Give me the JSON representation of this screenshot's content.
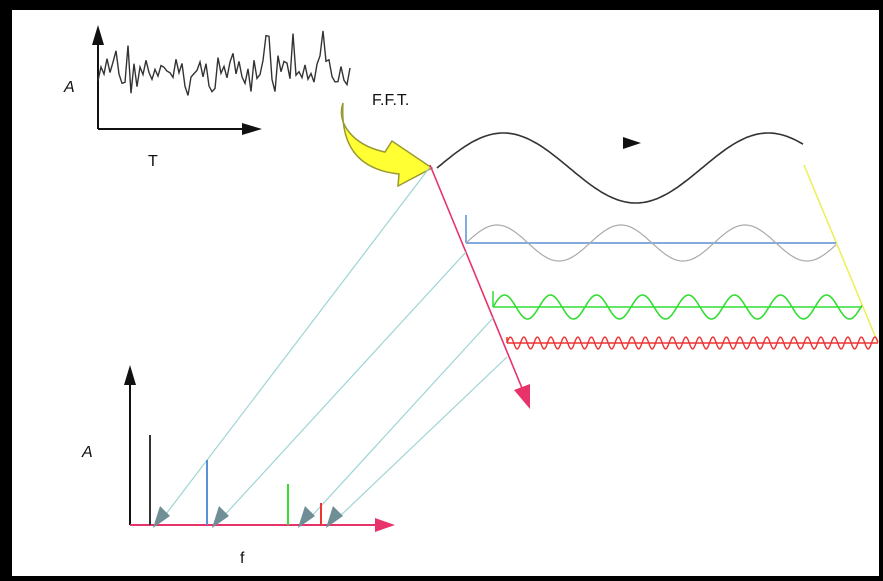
{
  "labels": {
    "time_amplitude": "A",
    "time_axis": "T",
    "fft": "F.F.T.",
    "freq_amplitude": "A",
    "freq_axis": "f"
  },
  "colors": {
    "background": "#ffffff",
    "frame": "#000000",
    "signal": "#333333",
    "fundamental": "#333333",
    "harmonic_blue": "#5b8fd6",
    "harmonic_green": "#33dd33",
    "harmonic_red": "#ee3333",
    "projection": "#9fd4d4",
    "fft_arrow": "#ffff33",
    "diagonal_axis": "#e8336a",
    "yellow_line": "#eeee55",
    "spectrum_axis": "#e8336a",
    "arrowhead": "#6f8e95"
  }
}
